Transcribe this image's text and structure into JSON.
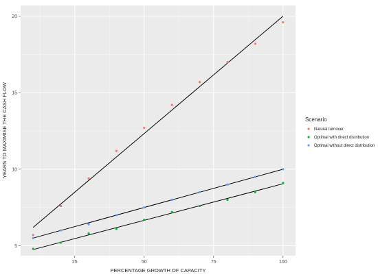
{
  "chart_data": {
    "type": "scatter",
    "title": "",
    "xlabel": "PERCENTAGE GROWTH OF CAPACITY",
    "ylabel": "YEARS TO MAXIMISE THE CASH FLOW",
    "xlim": [
      5.5,
      104.5
    ],
    "ylim": [
      4.35,
      20.7
    ],
    "x_ticks": [
      25,
      50,
      75,
      100
    ],
    "y_ticks": [
      5,
      10,
      15,
      20
    ],
    "grid": true,
    "legend": {
      "title": "Scenario",
      "position": "right"
    },
    "series": [
      {
        "name": "Natural turnover",
        "color": "#F8766D",
        "x": [
          10,
          20,
          30,
          40,
          50,
          60,
          70,
          80,
          90,
          100
        ],
        "y": [
          5.7,
          7.6,
          9.4,
          11.2,
          12.7,
          14.2,
          15.7,
          17.0,
          18.2,
          19.6
        ],
        "fit": {
          "x": [
            10,
            100
          ],
          "y": [
            6.2,
            20.0
          ]
        }
      },
      {
        "name": "Optimal with direct distribution",
        "color": "#00BA38",
        "x": [
          10,
          20,
          30,
          40,
          50,
          60,
          70,
          80,
          90,
          100
        ],
        "y": [
          4.8,
          5.2,
          5.8,
          6.1,
          6.7,
          7.2,
          7.6,
          8.0,
          8.5,
          9.1
        ],
        "fit": {
          "x": [
            10,
            100
          ],
          "y": [
            4.75,
            9.05
          ]
        }
      },
      {
        "name": "Optimal without direct distribution",
        "color": "#619CFF",
        "x": [
          10,
          20,
          30,
          40,
          50,
          60,
          70,
          80,
          90,
          100
        ],
        "y": [
          5.5,
          6.0,
          6.4,
          7.0,
          7.5,
          8.0,
          8.5,
          9.0,
          9.5,
          10.0
        ],
        "fit": {
          "x": [
            10,
            100
          ],
          "y": [
            5.5,
            10.0
          ]
        }
      }
    ]
  }
}
